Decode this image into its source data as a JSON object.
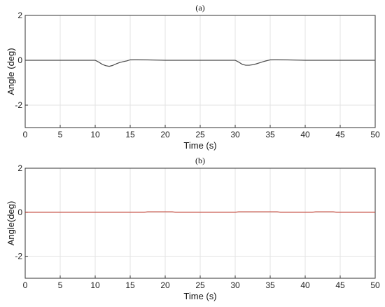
{
  "chart_data": [
    {
      "type": "line",
      "title": "(a)",
      "xlabel": "Time (s)",
      "ylabel": "Angle (deg)",
      "xlim": [
        0,
        50
      ],
      "ylim": [
        -3,
        2
      ],
      "xticks": [
        0,
        5,
        10,
        15,
        20,
        25,
        30,
        35,
        40,
        45,
        50
      ],
      "yticks": [
        -2,
        0,
        2
      ],
      "grid": true,
      "series": [
        {
          "color": "#4a4a4a",
          "x": [
            0,
            10,
            10.5,
            11,
            11.5,
            12,
            12.5,
            13,
            13.5,
            14,
            14.5,
            15,
            15.5,
            16,
            20,
            30,
            30.5,
            31,
            31.5,
            32,
            32.5,
            33,
            33.5,
            34,
            34.5,
            35,
            35.5,
            36,
            40,
            50
          ],
          "y": [
            0,
            0,
            -0.08,
            -0.18,
            -0.24,
            -0.27,
            -0.23,
            -0.16,
            -0.1,
            -0.06,
            -0.03,
            0.02,
            0.03,
            0.03,
            0,
            0,
            -0.08,
            -0.18,
            -0.22,
            -0.22,
            -0.2,
            -0.16,
            -0.11,
            -0.06,
            -0.02,
            0.02,
            0.03,
            0.03,
            0,
            0
          ]
        }
      ]
    },
    {
      "type": "line",
      "title": "(b)",
      "xlabel": "Time (s)",
      "ylabel": "Angle(deg)",
      "xlim": [
        0,
        50
      ],
      "ylim": [
        -3,
        2
      ],
      "xticks": [
        0,
        5,
        10,
        15,
        20,
        25,
        30,
        35,
        40,
        45,
        50
      ],
      "yticks": [
        -2,
        0,
        2
      ],
      "grid": true,
      "series": [
        {
          "color": "#c0392b",
          "x": [
            0,
            17,
            17.5,
            21,
            21.5,
            30,
            30.5,
            36,
            36.5,
            41,
            41.5,
            44,
            44.5,
            50
          ],
          "y": [
            0,
            0,
            0.02,
            0.02,
            0,
            0,
            0.02,
            0.02,
            0,
            0,
            0.02,
            0.02,
            0,
            0
          ]
        }
      ]
    }
  ]
}
